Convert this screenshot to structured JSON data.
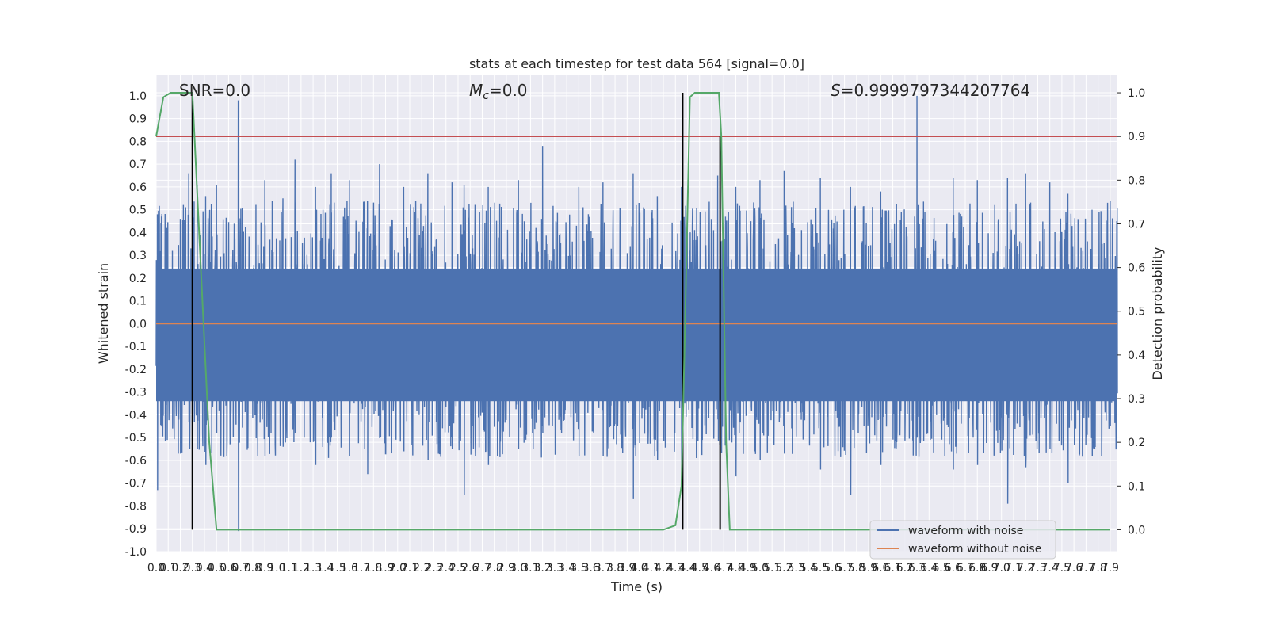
{
  "chart_data": {
    "type": "line",
    "title": "stats at each timestep for test data 564 [signal=0.0]",
    "xlabel": "Time (s)",
    "ylabel": "Whitened strain",
    "y2label": "Detection probability",
    "xlim": [
      0.0,
      7.96
    ],
    "ylim": [
      -1.0,
      1.09
    ],
    "y2lim": [
      -0.05,
      1.04
    ],
    "x_ticks": [
      "0.0",
      "0.1",
      "0.2",
      "0.3",
      "0.4",
      "0.5",
      "0.6",
      "0.7",
      "0.8",
      "0.9",
      "1.0",
      "1.1",
      "1.2",
      "1.3",
      "1.4",
      "1.5",
      "1.6",
      "1.7",
      "1.8",
      "1.9",
      "2.0",
      "2.1",
      "2.2",
      "2.3",
      "2.4",
      "2.5",
      "2.6",
      "2.7",
      "2.8",
      "2.9",
      "3.0",
      "3.1",
      "3.2",
      "3.3",
      "3.4",
      "3.5",
      "3.6",
      "3.7",
      "3.8",
      "3.9",
      "4.0",
      "4.1",
      "4.2",
      "4.3",
      "4.4",
      "4.5",
      "4.6",
      "4.7",
      "4.8",
      "4.9",
      "5.0",
      "5.1",
      "5.2",
      "5.3",
      "5.4",
      "5.5",
      "5.6",
      "5.7",
      "5.8",
      "5.9",
      "6.0",
      "6.1",
      "6.2",
      "6.3",
      "6.4",
      "6.5",
      "6.6",
      "6.7",
      "6.8",
      "6.9",
      "7.0",
      "7.1",
      "7.2",
      "7.3",
      "7.4",
      "7.5",
      "7.6",
      "7.7",
      "7.8",
      "7.9"
    ],
    "y_ticks": [
      "-1.0",
      "-0.9",
      "-0.8",
      "-0.7",
      "-0.6",
      "-0.5",
      "-0.4",
      "-0.3",
      "-0.2",
      "-0.1",
      "0.0",
      "0.1",
      "0.2",
      "0.3",
      "0.4",
      "0.5",
      "0.6",
      "0.7",
      "0.8",
      "0.9",
      "1.0"
    ],
    "y2_ticks": [
      "0.0",
      "0.1",
      "0.2",
      "0.3",
      "0.4",
      "0.5",
      "0.6",
      "0.7",
      "0.8",
      "0.9",
      "1.0"
    ],
    "annotations": {
      "snr": "SNR=0.0",
      "mc_symbol": "M",
      "mc_sub": "c",
      "mc_value": "=0.0",
      "s_symbol": "S",
      "s_value": "=0.9999797344207764"
    },
    "threshold_y2": 0.9,
    "noise_envelope_y": [
      0.24,
      -0.34
    ],
    "noise_peaks": [
      [
        0.01,
        0.48,
        -0.73
      ],
      [
        0.09,
        0.42,
        -0.51
      ],
      [
        0.2,
        0.46,
        -0.57
      ],
      [
        0.27,
        0.66,
        -0.43
      ],
      [
        0.34,
        0.61,
        -0.55
      ],
      [
        0.41,
        0.56,
        -0.62
      ],
      [
        0.5,
        0.61,
        -0.48
      ],
      [
        0.68,
        0.98,
        -0.91
      ],
      [
        0.9,
        0.63,
        -0.58
      ],
      [
        1.05,
        0.55,
        -0.54
      ],
      [
        1.15,
        0.72,
        -0.48
      ],
      [
        1.32,
        0.6,
        -0.62
      ],
      [
        1.45,
        0.66,
        -0.5
      ],
      [
        1.6,
        0.63,
        -0.58
      ],
      [
        1.75,
        0.54,
        -0.66
      ],
      [
        1.85,
        0.7,
        -0.5
      ],
      [
        2.05,
        0.6,
        -0.56
      ],
      [
        2.25,
        0.66,
        -0.6
      ],
      [
        2.45,
        0.62,
        -0.55
      ],
      [
        2.55,
        0.61,
        -0.75
      ],
      [
        2.75,
        0.6,
        -0.62
      ],
      [
        3.0,
        0.63,
        -0.55
      ],
      [
        3.2,
        0.78,
        -0.48
      ],
      [
        3.5,
        0.6,
        -0.58
      ],
      [
        3.7,
        0.62,
        -0.58
      ],
      [
        3.95,
        0.66,
        -0.77
      ],
      [
        4.15,
        0.56,
        -0.6
      ],
      [
        4.35,
        0.6,
        -0.65
      ],
      [
        4.65,
        0.65,
        -0.42
      ],
      [
        4.8,
        0.6,
        -0.67
      ],
      [
        5.0,
        0.63,
        -0.6
      ],
      [
        5.2,
        0.67,
        -0.57
      ],
      [
        5.5,
        0.64,
        -0.64
      ],
      [
        5.75,
        0.6,
        -0.75
      ],
      [
        6.0,
        0.58,
        -0.62
      ],
      [
        6.3,
        1.0,
        -0.5
      ],
      [
        6.6,
        0.64,
        -0.64
      ],
      [
        6.8,
        0.63,
        -0.62
      ],
      [
        7.05,
        0.64,
        -0.79
      ],
      [
        7.2,
        0.66,
        -0.63
      ],
      [
        7.4,
        0.62,
        -0.55
      ],
      [
        7.55,
        0.57,
        -0.7
      ],
      [
        7.75,
        0.5,
        -0.58
      ],
      [
        7.9,
        0.54,
        -0.45
      ]
    ],
    "series": [
      {
        "name": "waveform with noise",
        "color": "#4c72b0"
      },
      {
        "name": "waveform without noise",
        "color": "#dd8452",
        "x": [
          0.0,
          7.96
        ],
        "y": [
          0.0,
          0.0
        ]
      },
      {
        "color": "#55a868",
        "axis": "y2",
        "x": [
          0.0,
          0.06,
          0.12,
          0.2,
          0.3,
          0.37,
          0.44,
          0.5,
          0.6,
          1.0,
          2.0,
          3.0,
          4.0,
          4.2,
          4.3,
          4.35,
          4.39,
          4.42,
          4.46,
          4.5,
          4.66,
          4.68,
          4.72,
          4.75,
          4.8,
          5.5,
          6.5,
          7.5,
          7.9
        ],
        "y": [
          0.9,
          0.99,
          1.0,
          1.0,
          1.0,
          0.6,
          0.2,
          0.0,
          0.0,
          0.0,
          0.0,
          0.0,
          0.0,
          0.0,
          0.01,
          0.1,
          0.6,
          0.99,
          1.0,
          1.0,
          1.0,
          0.9,
          0.2,
          0.0,
          0.0,
          0.0,
          0.0,
          0.0,
          0.0
        ]
      }
    ],
    "vlines": [
      {
        "x": 0.3,
        "y2_range": [
          0.0,
          1.0
        ]
      },
      {
        "x": 4.36,
        "y2_range": [
          0.0,
          1.0
        ]
      },
      {
        "x": 4.67,
        "y2_range": [
          0.0,
          0.9
        ]
      }
    ],
    "legend_placement": "lower-right",
    "grid": true
  }
}
